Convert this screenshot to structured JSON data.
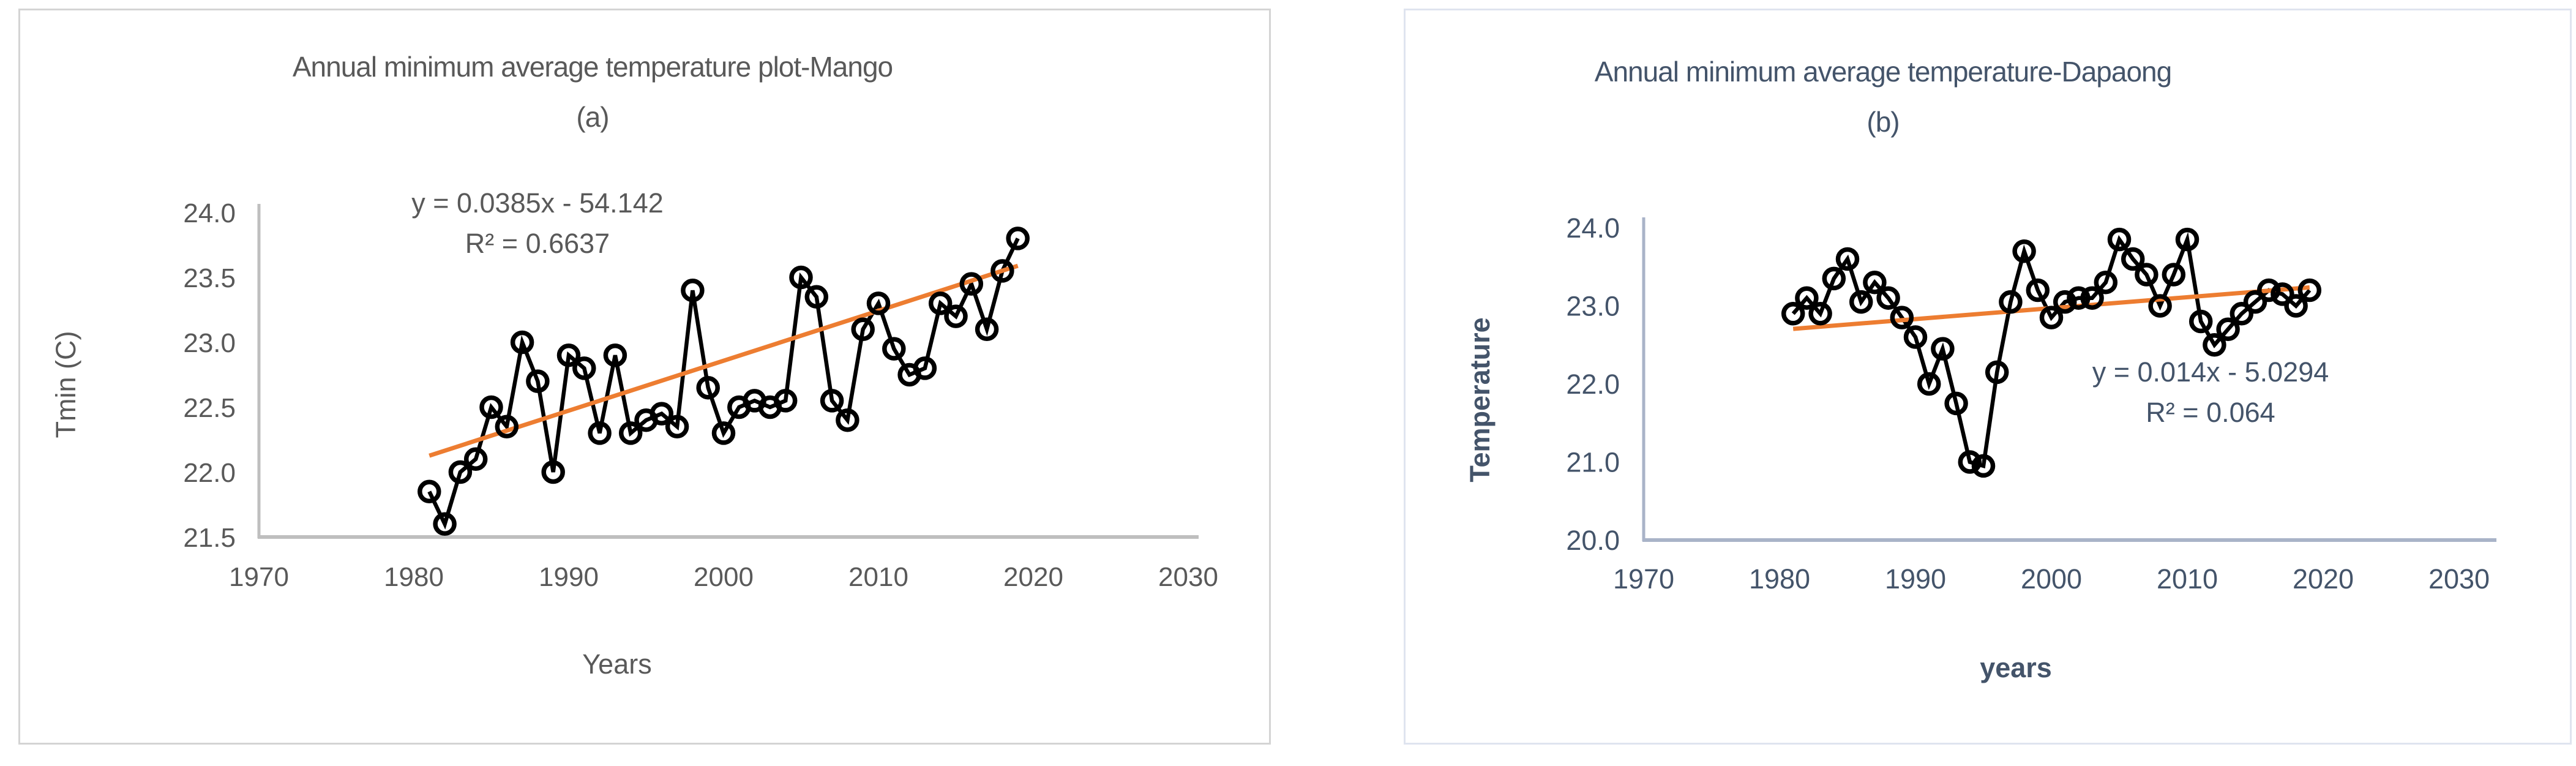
{
  "chart_data": [
    {
      "type": "line",
      "panel": "left",
      "title": "Annual minimum average temperature plot-Mango",
      "subtitle": "(a)",
      "xlabel": "Years",
      "ylabel": "Tmin (C)",
      "xlim": [
        1970,
        2030
      ],
      "ylim": [
        21.5,
        24.0
      ],
      "x_tick_labels": [
        "1970",
        "1980",
        "1990",
        "2000",
        "2010",
        "2020",
        "2030"
      ],
      "y_tick_labels": [
        "21.5",
        "22.0",
        "22.5",
        "23.0",
        "23.5",
        "24.0"
      ],
      "grid": false,
      "legend": "none",
      "marker": "open-circle",
      "years": [
        1981,
        1982,
        1983,
        1984,
        1985,
        1986,
        1987,
        1988,
        1989,
        1990,
        1991,
        1992,
        1993,
        1994,
        1995,
        1996,
        1997,
        1998,
        1999,
        2000,
        2001,
        2002,
        2003,
        2004,
        2005,
        2006,
        2007,
        2008,
        2009,
        2010,
        2011,
        2012,
        2013,
        2014,
        2015,
        2016,
        2017,
        2018,
        2019
      ],
      "values": [
        21.85,
        21.6,
        22.0,
        22.1,
        22.5,
        22.35,
        23.0,
        22.7,
        22.0,
        22.9,
        22.8,
        22.3,
        22.9,
        22.3,
        22.4,
        22.45,
        22.35,
        23.4,
        22.65,
        22.3,
        22.5,
        22.55,
        22.5,
        22.55,
        23.5,
        23.35,
        22.55,
        22.4,
        23.1,
        23.3,
        22.95,
        22.75,
        22.8,
        23.3,
        23.2,
        23.45,
        23.1,
        23.55,
        23.8
      ],
      "trendline": {
        "equation": "y = 0.0385x - 54.142",
        "r_squared": "R² = 0.6637",
        "slope": 0.0385,
        "intercept": -54.142,
        "x_start": 1981,
        "x_end": 2019
      },
      "colors": {
        "series": "#000000",
        "trend": "#ed7d31",
        "axis": "#bfbfbf",
        "text": "#595959"
      }
    },
    {
      "type": "line",
      "panel": "right",
      "title": "Annual  minimum average temperature-Dapaong",
      "subtitle": "(b)",
      "xlabel": "years",
      "ylabel": "Temperature",
      "xlim": [
        1970,
        2030
      ],
      "ylim": [
        20.0,
        24.0
      ],
      "x_tick_labels": [
        "1970",
        "1980",
        "1990",
        "2000",
        "2010",
        "2020",
        "2030"
      ],
      "y_tick_labels": [
        "20.0",
        "21.0",
        "22.0",
        "23.0",
        "24.0"
      ],
      "grid": false,
      "legend": "none",
      "marker": "open-circle",
      "years": [
        1981,
        1982,
        1983,
        1984,
        1985,
        1986,
        1987,
        1988,
        1989,
        1990,
        1991,
        1992,
        1993,
        1994,
        1995,
        1996,
        1997,
        1998,
        1999,
        2000,
        2001,
        2002,
        2003,
        2004,
        2005,
        2006,
        2007,
        2008,
        2009,
        2010,
        2011,
        2012,
        2013,
        2014,
        2015,
        2016,
        2017,
        2018,
        2019
      ],
      "values": [
        22.9,
        23.1,
        22.9,
        23.35,
        23.6,
        23.05,
        23.3,
        23.1,
        22.85,
        22.6,
        22.0,
        22.45,
        21.75,
        21.0,
        20.95,
        22.15,
        23.05,
        23.7,
        23.2,
        22.85,
        23.05,
        23.1,
        23.1,
        23.3,
        23.85,
        23.6,
        23.4,
        23.0,
        23.4,
        23.85,
        22.8,
        22.5,
        22.7,
        22.9,
        23.05,
        23.2,
        23.15,
        23.0,
        23.2
      ],
      "trendline": {
        "equation": "y = 0.014x - 5.0294",
        "r_squared": "R² = 0.064",
        "slope": 0.014,
        "intercept": -5.0294,
        "x_start": 1981,
        "x_end": 2019
      },
      "colors": {
        "series": "#000000",
        "trend": "#ed7d31",
        "axis": "#a9b3c8",
        "text": "#44546a"
      }
    }
  ]
}
